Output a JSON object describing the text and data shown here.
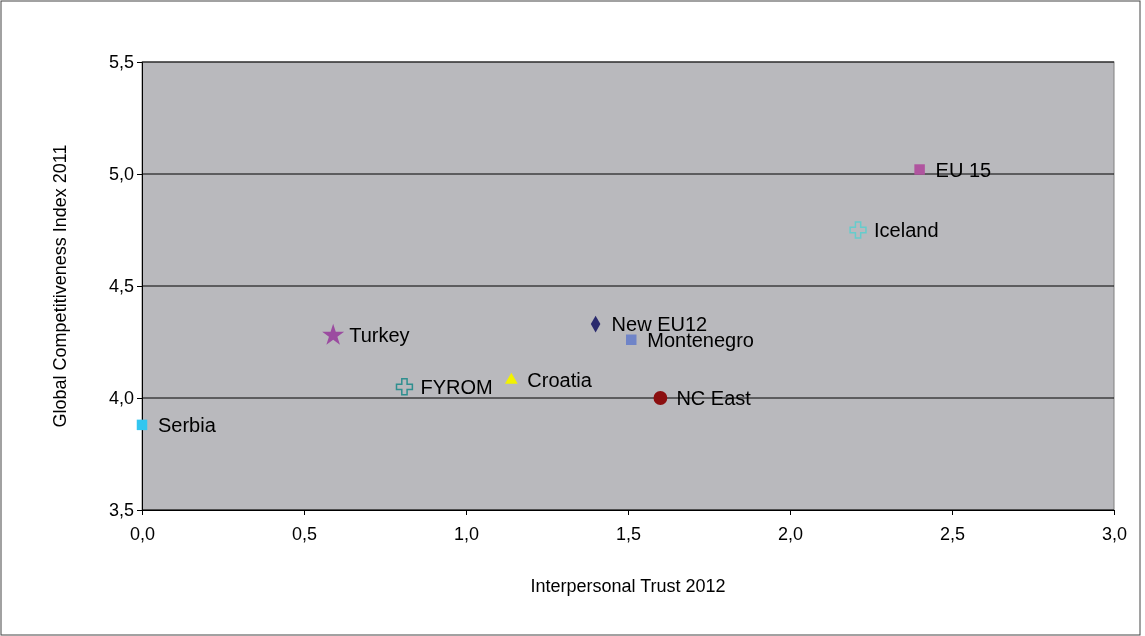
{
  "chart_data": {
    "type": "scatter",
    "xlabel": "Interpersonal Trust 2012",
    "ylabel": "Global Competitiveness Index 2011",
    "xlim": [
      0,
      3
    ],
    "xticks": [
      {
        "value": 0,
        "label": "0,0"
      },
      {
        "value": 0.5,
        "label": "0,5"
      },
      {
        "value": 1,
        "label": "1,0"
      },
      {
        "value": 1.5,
        "label": "1,5"
      },
      {
        "value": 2,
        "label": "2,0"
      },
      {
        "value": 2.5,
        "label": "2,5"
      },
      {
        "value": 3,
        "label": "3,0"
      }
    ],
    "ylim": [
      3.5,
      5.5
    ],
    "yticks": [
      {
        "value": 3.5,
        "label": "3,5"
      },
      {
        "value": 4,
        "label": "4,0"
      },
      {
        "value": 4.5,
        "label": "4,5"
      },
      {
        "value": 5,
        "label": "5,0"
      },
      {
        "value": 5.5,
        "label": "5,5"
      }
    ],
    "grid": "y",
    "series": [
      {
        "name": "EU 15",
        "color": "#b0549f",
        "marker": "square",
        "x": [
          2.4
        ],
        "values": [
          5.02
        ]
      },
      {
        "name": "Iceland",
        "color": "#66cccc",
        "marker": "cross",
        "x": [
          2.21
        ],
        "values": [
          4.75
        ]
      },
      {
        "name": "Turkey",
        "color": "#9b4ca0",
        "marker": "star",
        "x": [
          0.59
        ],
        "values": [
          4.28
        ]
      },
      {
        "name": "New EU12",
        "color": "#2a2a6e",
        "marker": "diamond",
        "x": [
          1.4
        ],
        "values": [
          4.33
        ]
      },
      {
        "name": "Montenegro",
        "color": "#6f84c8",
        "marker": "square",
        "x": [
          1.51
        ],
        "values": [
          4.26
        ]
      },
      {
        "name": "FYROM",
        "color": "#2f8f8f",
        "marker": "cross",
        "x": [
          0.81
        ],
        "values": [
          4.05
        ]
      },
      {
        "name": "Croatia",
        "color": "#f2f200",
        "marker": "triangle",
        "x": [
          1.14
        ],
        "values": [
          4.08
        ]
      },
      {
        "name": "NC East",
        "color": "#8b0f10",
        "marker": "circle",
        "x": [
          1.6
        ],
        "values": [
          4.0
        ]
      },
      {
        "name": "Serbia",
        "color": "#33c6f0",
        "marker": "square",
        "x": [
          0.0
        ],
        "values": [
          3.88
        ]
      }
    ]
  }
}
